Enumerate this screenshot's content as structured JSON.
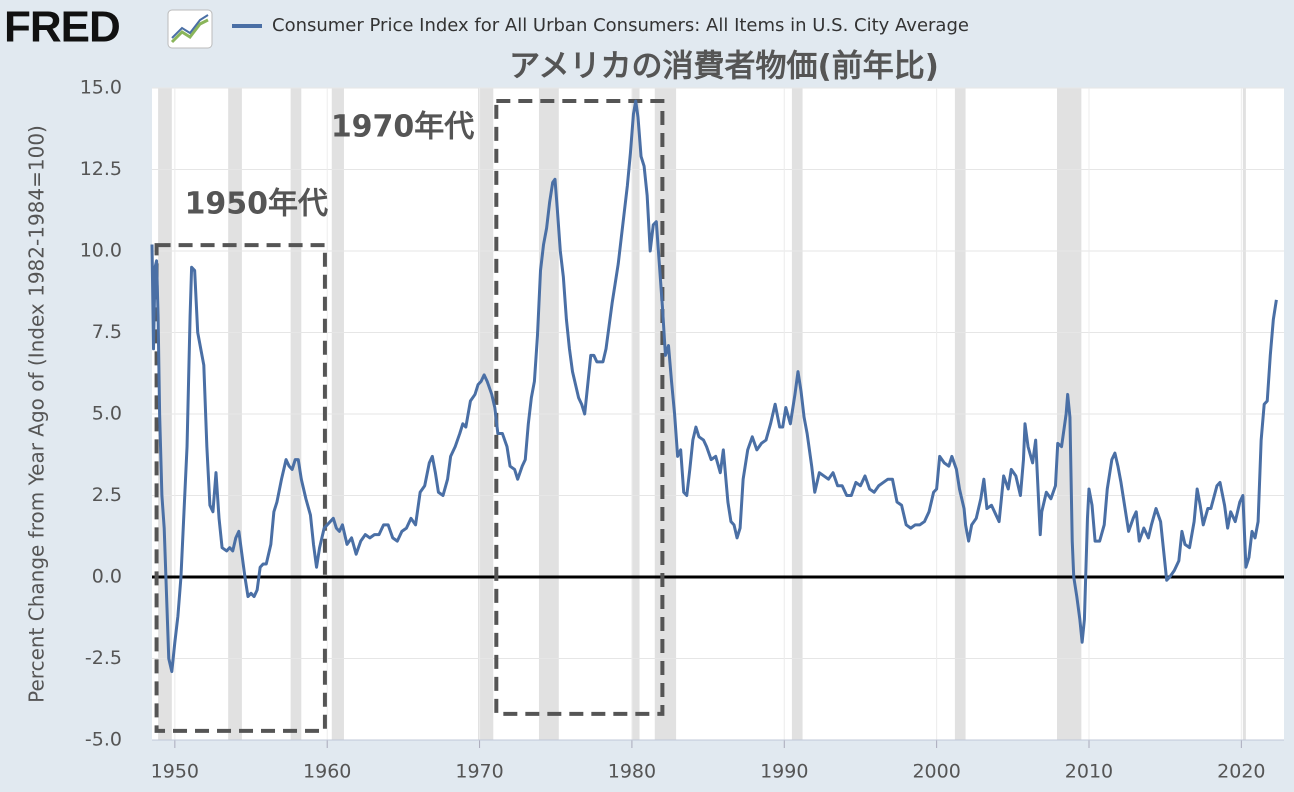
{
  "logo": "FRED",
  "chart_data": {
    "type": "line",
    "title": "アメリカの消費者物価(前年比)",
    "y_label": "Percent Change from Year Ago of (Index 1982-1984=100)",
    "xlim": [
      1948.5,
      2022.8
    ],
    "xticks": [
      1950,
      1960,
      1970,
      1980,
      1990,
      2000,
      2010,
      2020
    ],
    "ylim": [
      -5,
      15
    ],
    "yticks": [
      {
        "value": -5,
        "label": "-5.0"
      },
      {
        "value": -2.5,
        "label": "-2.5"
      },
      {
        "value": 0,
        "label": "0.0"
      },
      {
        "value": 2.5,
        "label": "2.5"
      },
      {
        "value": 5,
        "label": "5.0"
      },
      {
        "value": 7.5,
        "label": "7.5"
      },
      {
        "value": 10,
        "label": "10.0"
      },
      {
        "value": 12.5,
        "label": "12.5"
      },
      {
        "value": 15,
        "label": "15.0"
      }
    ],
    "grid": true,
    "recessions": [
      [
        1948.9,
        1949.8
      ],
      [
        1953.5,
        1954.4
      ],
      [
        1957.6,
        1958.3
      ],
      [
        1960.3,
        1961.1
      ],
      [
        1969.9,
        1970.9
      ],
      [
        1973.9,
        1975.2
      ],
      [
        1980.0,
        1980.5
      ],
      [
        1981.5,
        1982.9
      ],
      [
        1990.5,
        1991.2
      ],
      [
        2001.2,
        2001.9
      ],
      [
        2007.9,
        2009.5
      ],
      [
        2020.1,
        2020.3
      ]
    ],
    "annotations": [
      {
        "text": "1950年代",
        "x": [
          1948.8,
          1959.85
        ],
        "y": [
          -4.72,
          10.18
        ]
      },
      {
        "text": "1970年代",
        "x": [
          1971.1,
          1982.0
        ],
        "y": [
          -4.2,
          14.6
        ]
      }
    ],
    "x": [
      1948.5,
      1948.6,
      1948.7,
      1948.8,
      1948.9,
      1949.0,
      1949.15,
      1949.3,
      1949.45,
      1949.6,
      1949.8,
      1950.0,
      1950.2,
      1950.4,
      1950.6,
      1950.8,
      1951.0,
      1951.1,
      1951.3,
      1951.5,
      1951.7,
      1951.9,
      1952.1,
      1952.3,
      1952.5,
      1952.7,
      1952.9,
      1953.1,
      1953.4,
      1953.6,
      1953.8,
      1954.0,
      1954.2,
      1954.4,
      1954.6,
      1954.8,
      1955.0,
      1955.2,
      1955.4,
      1955.6,
      1955.8,
      1956.0,
      1956.3,
      1956.5,
      1956.7,
      1957.0,
      1957.3,
      1957.5,
      1957.7,
      1957.9,
      1958.1,
      1958.3,
      1958.6,
      1958.9,
      1959.1,
      1959.3,
      1959.5,
      1959.8,
      1960.0,
      1960.2,
      1960.4,
      1960.6,
      1960.8,
      1961.0,
      1961.3,
      1961.6,
      1961.9,
      1962.2,
      1962.5,
      1962.8,
      1963.1,
      1963.4,
      1963.7,
      1964.0,
      1964.3,
      1964.6,
      1964.9,
      1965.2,
      1965.5,
      1965.8,
      1966.1,
      1966.4,
      1966.7,
      1966.9,
      1967.1,
      1967.3,
      1967.6,
      1967.9,
      1968.1,
      1968.4,
      1968.7,
      1968.9,
      1969.1,
      1969.4,
      1969.7,
      1969.9,
      1970.1,
      1970.3,
      1970.5,
      1970.8,
      1971.0,
      1971.2,
      1971.5,
      1971.8,
      1972.0,
      1972.3,
      1972.5,
      1972.8,
      1973.0,
      1973.2,
      1973.4,
      1973.6,
      1973.8,
      1974.0,
      1974.2,
      1974.4,
      1974.6,
      1974.8,
      1974.95,
      1975.1,
      1975.3,
      1975.5,
      1975.7,
      1975.9,
      1976.1,
      1976.3,
      1976.5,
      1976.7,
      1976.9,
      1977.1,
      1977.3,
      1977.5,
      1977.7,
      1977.9,
      1978.1,
      1978.3,
      1978.5,
      1978.7,
      1978.9,
      1979.1,
      1979.3,
      1979.5,
      1979.7,
      1979.9,
      1980.1,
      1980.25,
      1980.4,
      1980.6,
      1980.8,
      1981.0,
      1981.2,
      1981.4,
      1981.6,
      1981.8,
      1982.0,
      1982.2,
      1982.4,
      1982.6,
      1982.8,
      1983.0,
      1983.2,
      1983.4,
      1983.6,
      1983.8,
      1984.0,
      1984.2,
      1984.4,
      1984.7,
      1984.9,
      1985.2,
      1985.5,
      1985.8,
      1986.0,
      1986.3,
      1986.5,
      1986.7,
      1986.9,
      1987.1,
      1987.3,
      1987.6,
      1987.9,
      1988.2,
      1988.5,
      1988.8,
      1989.1,
      1989.4,
      1989.7,
      1989.9,
      1990.1,
      1990.4,
      1990.7,
      1990.9,
      1991.1,
      1991.3,
      1991.5,
      1991.8,
      1992.0,
      1992.3,
      1992.6,
      1992.9,
      1993.2,
      1993.5,
      1993.8,
      1994.1,
      1994.4,
      1994.7,
      1995.0,
      1995.3,
      1995.6,
      1995.9,
      1996.2,
      1996.5,
      1996.8,
      1997.1,
      1997.4,
      1997.7,
      1998.0,
      1998.3,
      1998.6,
      1998.9,
      1999.2,
      1999.5,
      1999.8,
      2000.0,
      2000.2,
      2000.5,
      2000.8,
      2001.0,
      2001.3,
      2001.5,
      2001.8,
      2001.9,
      2002.1,
      2002.3,
      2002.6,
      2002.9,
      2003.1,
      2003.3,
      2003.6,
      2003.9,
      2004.1,
      2004.4,
      2004.7,
      2004.9,
      2005.2,
      2005.5,
      2005.7,
      2005.8,
      2006.0,
      2006.3,
      2006.5,
      2006.8,
      2006.9,
      2007.2,
      2007.5,
      2007.8,
      2007.95,
      2008.2,
      2008.5,
      2008.6,
      2008.75,
      2008.9,
      2009.0,
      2009.2,
      2009.4,
      2009.55,
      2009.7,
      2009.9,
      2010.0,
      2010.2,
      2010.4,
      2010.7,
      2011.0,
      2011.2,
      2011.5,
      2011.7,
      2011.9,
      2012.1,
      2012.3,
      2012.6,
      2012.9,
      2013.1,
      2013.3,
      2013.6,
      2013.9,
      2014.1,
      2014.4,
      2014.7,
      2014.9,
      2015.1,
      2015.3,
      2015.6,
      2015.9,
      2016.1,
      2016.3,
      2016.6,
      2016.9,
      2017.1,
      2017.3,
      2017.5,
      2017.8,
      2018.0,
      2018.4,
      2018.6,
      2018.9,
      2019.1,
      2019.3,
      2019.6,
      2019.9,
      2020.1,
      2020.3,
      2020.5,
      2020.7,
      2020.9,
      2021.1,
      2021.3,
      2021.5,
      2021.7,
      2021.9,
      2022.1,
      2022.3
    ],
    "series": [
      {
        "name": "Consumer Price Index for All Urban Consumers: All Items in U.S. City Average",
        "color": "#4a6fa5",
        "values": [
          10.2,
          7.0,
          9.5,
          9.7,
          8.0,
          5.0,
          2.5,
          1.5,
          -0.5,
          -2.5,
          -2.9,
          -2.0,
          -1.2,
          0.0,
          2.0,
          4.0,
          8.0,
          9.5,
          9.4,
          7.5,
          7.0,
          6.5,
          4.0,
          2.2,
          2.0,
          3.2,
          1.8,
          0.9,
          0.8,
          0.9,
          0.8,
          1.2,
          1.4,
          0.7,
          0.0,
          -0.6,
          -0.5,
          -0.6,
          -0.4,
          0.3,
          0.4,
          0.4,
          1.0,
          2.0,
          2.3,
          3.0,
          3.6,
          3.4,
          3.3,
          3.6,
          3.6,
          3.0,
          2.4,
          1.9,
          1.0,
          0.3,
          0.9,
          1.5,
          1.6,
          1.7,
          1.8,
          1.5,
          1.4,
          1.6,
          1.0,
          1.2,
          0.7,
          1.1,
          1.3,
          1.2,
          1.3,
          1.3,
          1.6,
          1.6,
          1.2,
          1.1,
          1.4,
          1.5,
          1.8,
          1.6,
          2.6,
          2.8,
          3.5,
          3.7,
          3.2,
          2.6,
          2.5,
          3.0,
          3.7,
          4.0,
          4.4,
          4.7,
          4.6,
          5.4,
          5.6,
          5.9,
          6.0,
          6.2,
          6.0,
          5.6,
          5.2,
          4.4,
          4.4,
          4.0,
          3.4,
          3.3,
          3.0,
          3.4,
          3.6,
          4.7,
          5.5,
          6.0,
          7.4,
          9.4,
          10.2,
          10.7,
          11.5,
          12.1,
          12.2,
          11.3,
          10.0,
          9.2,
          7.9,
          7.0,
          6.3,
          5.9,
          5.5,
          5.3,
          5.0,
          5.9,
          6.8,
          6.8,
          6.6,
          6.6,
          6.6,
          7.0,
          7.7,
          8.4,
          9.0,
          9.6,
          10.4,
          11.2,
          12.0,
          13.0,
          14.2,
          14.6,
          14.1,
          12.9,
          12.6,
          11.7,
          10.0,
          10.8,
          10.9,
          9.6,
          8.3,
          6.8,
          7.1,
          6.0,
          5.0,
          3.7,
          3.9,
          2.6,
          2.5,
          3.3,
          4.2,
          4.6,
          4.3,
          4.2,
          4.0,
          3.6,
          3.7,
          3.2,
          3.9,
          2.3,
          1.7,
          1.6,
          1.2,
          1.5,
          3.0,
          3.9,
          4.3,
          3.9,
          4.1,
          4.2,
          4.7,
          5.3,
          4.6,
          4.6,
          5.2,
          4.7,
          5.6,
          6.3,
          5.7,
          4.9,
          4.4,
          3.4,
          2.6,
          3.2,
          3.1,
          3.0,
          3.2,
          2.8,
          2.8,
          2.5,
          2.5,
          2.9,
          2.8,
          3.1,
          2.7,
          2.6,
          2.8,
          2.9,
          3.0,
          3.0,
          2.3,
          2.2,
          1.6,
          1.5,
          1.6,
          1.6,
          1.7,
          2.0,
          2.6,
          2.7,
          3.7,
          3.5,
          3.4,
          3.7,
          3.3,
          2.7,
          2.1,
          1.6,
          1.1,
          1.6,
          1.8,
          2.4,
          3.0,
          2.1,
          2.2,
          1.9,
          1.7,
          3.1,
          2.7,
          3.3,
          3.1,
          2.5,
          3.6,
          4.7,
          4.0,
          3.5,
          4.2,
          1.3,
          2.0,
          2.6,
          2.4,
          2.8,
          4.1,
          4.0,
          5.0,
          5.6,
          4.9,
          1.1,
          0.0,
          -0.6,
          -1.3,
          -2.0,
          -1.3,
          1.8,
          2.7,
          2.2,
          1.1,
          1.1,
          1.6,
          2.7,
          3.6,
          3.8,
          3.4,
          2.9,
          2.3,
          1.4,
          1.8,
          2.0,
          1.1,
          1.5,
          1.2,
          1.6,
          2.1,
          1.7,
          0.8,
          -0.1,
          0.0,
          0.2,
          0.5,
          1.4,
          1.0,
          0.9,
          1.7,
          2.7,
          2.2,
          1.6,
          2.1,
          2.1,
          2.8,
          2.9,
          2.2,
          1.5,
          2.0,
          1.7,
          2.3,
          2.5,
          0.3,
          0.6,
          1.4,
          1.2,
          1.7,
          4.2,
          5.3,
          5.4,
          6.8,
          7.9,
          8.5
        ]
      }
    ]
  }
}
